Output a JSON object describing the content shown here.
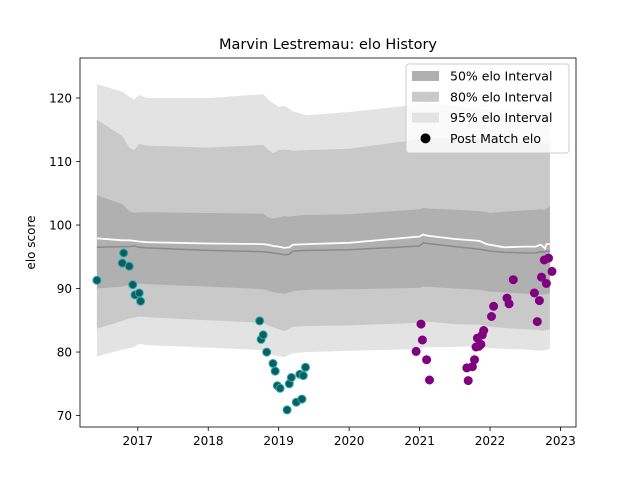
{
  "chart_data": {
    "type": "scatter",
    "title": "Marvin Lestremau: elo History",
    "xlabel": "",
    "ylabel": "elo score",
    "xlim": [
      2016.18,
      2023.22
    ],
    "ylim": [
      68.2,
      126.3
    ],
    "xticks": [
      2017,
      2018,
      2019,
      2020,
      2021,
      2022,
      2023
    ],
    "yticks": [
      70,
      80,
      90,
      100,
      110,
      120
    ],
    "grid": false,
    "legend_position": "top-right",
    "legend": [
      {
        "label": "50% elo Interval",
        "kind": "band",
        "color": "#b0b0b0"
      },
      {
        "label": "80% elo Interval",
        "kind": "band",
        "color": "#c9c9c9"
      },
      {
        "label": "95% elo Interval",
        "kind": "band",
        "color": "#e3e3e3"
      },
      {
        "label": "Post Match elo",
        "kind": "marker",
        "color": "#000000"
      }
    ],
    "colors": {
      "band95": "#e3e3e3",
      "band80": "#c9c9c9",
      "band50": "#b0b0b0",
      "median_line": "#8a8a8a",
      "mean_line": "#ffffff",
      "early_points": "#0b5e62",
      "early_points_edge": "#2aa7a9",
      "late_points": "#800080"
    },
    "interval_x": [
      2016.42,
      2016.78,
      2016.88,
      2016.95,
      2017.02,
      2017.12,
      2018.0,
      2018.78,
      2018.85,
      2018.92,
      2019.0,
      2019.08,
      2019.15,
      2019.2,
      2019.4,
      2020.0,
      2021.0,
      2021.05,
      2021.12,
      2021.5,
      2021.85,
      2021.95,
      2022.0,
      2022.2,
      2022.5,
      2022.65,
      2022.72,
      2022.78,
      2022.8,
      2022.85
    ],
    "band95": {
      "upper": [
        122.2,
        121.0,
        120.2,
        119.8,
        120.5,
        120.0,
        120.0,
        120.6,
        119.8,
        119.2,
        118.6,
        118.8,
        118.3,
        117.9,
        117.3,
        117.8,
        119.0,
        119.4,
        119.2,
        118.8,
        118.3,
        118.2,
        118.0,
        118.2,
        118.1,
        118.0,
        117.9,
        117.6,
        117.8,
        118.2
      ],
      "lower": [
        79.3,
        80.4,
        80.6,
        80.8,
        81.3,
        81.1,
        80.7,
        80.3,
        79.8,
        79.5,
        79.4,
        79.2,
        79.6,
        79.8,
        80.0,
        80.2,
        80.5,
        80.7,
        80.8,
        80.8,
        80.9,
        80.7,
        80.6,
        80.5,
        80.4,
        80.3,
        80.2,
        80.3,
        80.4,
        80.4
      ]
    },
    "band80": {
      "upper": [
        116.6,
        114.0,
        112.2,
        111.8,
        112.8,
        112.5,
        112.2,
        112.6,
        111.9,
        111.3,
        111.8,
        111.9,
        111.8,
        111.7,
        111.8,
        112.0,
        113.5,
        114.0,
        113.8,
        113.6,
        113.5,
        113.2,
        113.0,
        113.3,
        113.0,
        112.9,
        112.8,
        112.6,
        112.8,
        113.0
      ],
      "lower": [
        83.7,
        84.9,
        85.3,
        85.4,
        85.6,
        85.5,
        85.0,
        84.6,
        84.2,
        83.9,
        83.6,
        83.3,
        83.7,
        84.0,
        84.1,
        84.2,
        84.6,
        84.8,
        84.8,
        84.4,
        84.3,
        84.1,
        84.0,
        83.8,
        83.6,
        83.5,
        83.4,
        83.4,
        83.5,
        83.5
      ]
    },
    "band50": {
      "upper": [
        104.7,
        103.3,
        102.2,
        101.9,
        102.0,
        102.0,
        101.9,
        101.8,
        101.2,
        101.0,
        101.2,
        101.4,
        101.3,
        101.4,
        101.6,
        101.7,
        102.5,
        102.7,
        102.6,
        102.4,
        102.2,
        102.0,
        101.9,
        102.1,
        102.3,
        102.4,
        102.5,
        102.4,
        102.6,
        102.9
      ],
      "lower": [
        90.0,
        90.3,
        90.6,
        90.7,
        90.8,
        90.7,
        90.3,
        89.9,
        89.7,
        89.4,
        89.3,
        89.2,
        89.4,
        89.6,
        89.8,
        89.9,
        90.1,
        90.3,
        90.3,
        90.0,
        89.8,
        89.6,
        89.5,
        89.4,
        89.2,
        89.1,
        89.0,
        89.1,
        89.2,
        89.2
      ]
    },
    "median_line": [
      96.5,
      96.6,
      96.6,
      96.7,
      96.5,
      96.4,
      96.0,
      95.8,
      95.7,
      95.6,
      95.5,
      95.3,
      95.4,
      95.9,
      96.0,
      96.1,
      96.7,
      97.2,
      97.1,
      96.6,
      96.2,
      96.0,
      95.9,
      95.7,
      95.6,
      95.6,
      95.8,
      95.7,
      95.9,
      95.9
    ],
    "mean_line": [
      97.9,
      97.6,
      97.6,
      97.5,
      97.4,
      97.3,
      97.1,
      97.0,
      96.9,
      96.7,
      96.6,
      96.4,
      96.5,
      96.9,
      97.0,
      97.2,
      98.2,
      98.5,
      98.3,
      97.8,
      97.5,
      97.0,
      96.9,
      96.5,
      96.6,
      96.6,
      96.9,
      96.3,
      97.0,
      97.0
    ],
    "series": [
      {
        "group": "early",
        "x": [
          2016.42,
          2016.78,
          2016.8,
          2016.88,
          2016.93,
          2016.96,
          2017.02,
          2017.04,
          2018.73,
          2018.75,
          2018.78,
          2018.83,
          2018.92,
          2018.95,
          2018.98,
          2019.02,
          2019.12,
          2019.15,
          2019.18,
          2019.25,
          2019.3,
          2019.33,
          2019.35,
          2019.38
        ],
        "y": [
          91.3,
          94.0,
          95.6,
          93.5,
          90.6,
          89.0,
          89.3,
          88.0,
          84.9,
          82.0,
          82.7,
          80.0,
          78.2,
          77.0,
          74.7,
          74.3,
          70.9,
          75.0,
          76.0,
          72.1,
          76.5,
          72.6,
          76.3,
          77.6
        ]
      },
      {
        "group": "late",
        "x": [
          2020.95,
          2021.02,
          2021.04,
          2021.1,
          2021.14,
          2021.67,
          2021.69,
          2021.75,
          2021.78,
          2021.8,
          2021.82,
          2021.84,
          2021.87,
          2021.89,
          2021.91,
          2022.02,
          2022.05,
          2022.24,
          2022.27,
          2022.33,
          2022.63,
          2022.67,
          2022.7,
          2022.73,
          2022.77,
          2022.8,
          2022.83,
          2022.88
        ],
        "y": [
          80.1,
          84.4,
          81.9,
          78.8,
          75.6,
          77.5,
          75.5,
          77.7,
          78.8,
          80.8,
          82.2,
          80.9,
          81.2,
          82.7,
          83.4,
          85.6,
          87.2,
          88.5,
          87.6,
          91.4,
          89.3,
          84.8,
          88.1,
          91.8,
          94.5,
          90.8,
          94.8,
          92.7
        ]
      }
    ]
  }
}
